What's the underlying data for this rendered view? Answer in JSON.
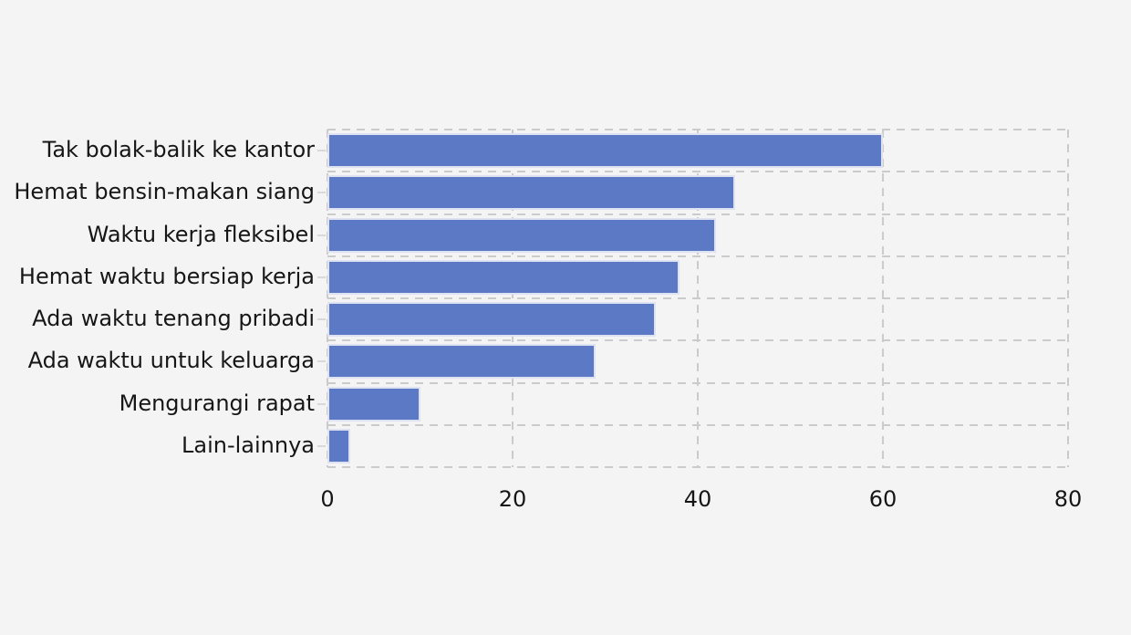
{
  "chart_data": {
    "type": "bar",
    "orientation": "horizontal",
    "title": "",
    "categories": [
      "Tak bolak-balik ke kantor",
      "Hemat bensin-makan siang",
      "Waktu kerja fleksibel",
      "Hemat waktu bersiap kerja",
      "Ada waktu tenang pribadi",
      "Ada waktu untuk keluarga",
      "Mengurangi rapat",
      "Lain-lainnya"
    ],
    "values": [
      60,
      44,
      42,
      38,
      35.5,
      29,
      10,
      2.5
    ],
    "xlabel": "",
    "ylabel": "",
    "xlim": [
      0,
      80
    ],
    "x_ticks": [
      "0",
      "20",
      "40",
      "60",
      "80"
    ],
    "x_tick_values": [
      0,
      20,
      40,
      60,
      80
    ],
    "grid": "dashed, full frame, lines between category rows and at x ticks",
    "legend": "none",
    "colors": {
      "bar_fill": "#5c79c5",
      "bar_edge": "#dfe2f1",
      "grid_line": "#cbcbcb",
      "background": "#f5f4f5",
      "text": "#161616"
    }
  }
}
